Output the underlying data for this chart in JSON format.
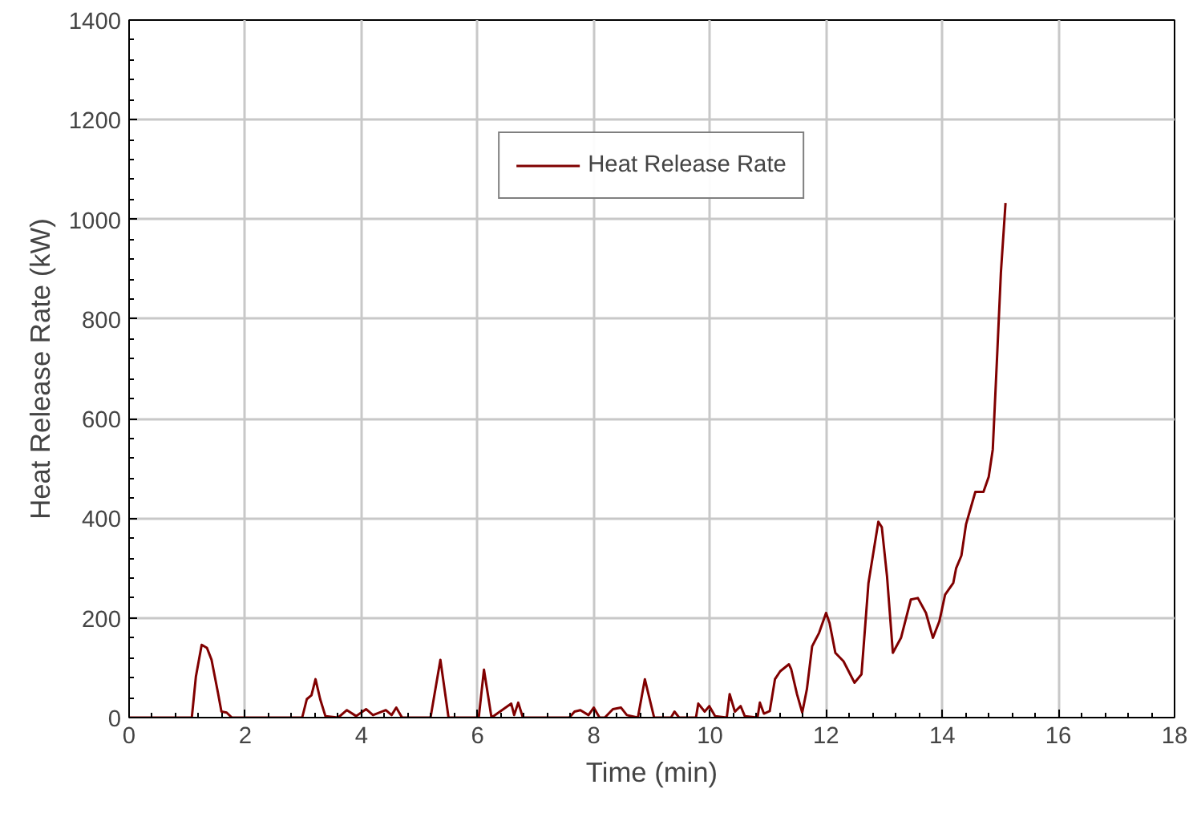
{
  "chart_data": {
    "type": "line",
    "xlabel": "Time (min)",
    "ylabel": "Heat Release Rate (kW)",
    "xlim": [
      0,
      18
    ],
    "ylim": [
      0,
      1400
    ],
    "xticks": [
      0,
      2,
      4,
      6,
      8,
      10,
      12,
      14,
      16,
      18
    ],
    "yticks": [
      0,
      200,
      400,
      600,
      800,
      1000,
      1200,
      1400
    ],
    "grid": true,
    "legend": "top",
    "marker": "none",
    "line_style": "solid",
    "series": [
      {
        "name": "Heat Release Rate",
        "color": "#800000",
        "x": [
          0,
          1.08,
          1.15,
          1.25,
          1.34,
          1.42,
          1.53,
          1.59,
          1.68,
          1.77,
          2.98,
          3.06,
          3.14,
          3.21,
          3.29,
          3.38,
          3.6,
          3.75,
          3.91,
          4.08,
          4.2,
          4.42,
          4.52,
          4.6,
          4.7,
          5.19,
          5.36,
          5.5,
          6.02,
          6.11,
          6.24,
          6.58,
          6.63,
          6.7,
          6.78,
          7.58,
          7.67,
          7.77,
          7.91,
          8.0,
          8.1,
          8.19,
          8.33,
          8.47,
          8.57,
          8.76,
          8.88,
          9.04,
          9.33,
          9.39,
          9.47,
          9.76,
          9.8,
          9.91,
          9.99,
          10.09,
          10.29,
          10.34,
          10.43,
          10.53,
          10.6,
          10.82,
          10.86,
          10.93,
          11.03,
          11.12,
          11.21,
          11.36,
          11.4,
          11.5,
          11.59,
          11.67,
          11.76,
          11.88,
          12.0,
          12.06,
          12.16,
          12.3,
          12.49,
          12.61,
          12.73,
          12.9,
          12.96,
          13.05,
          13.15,
          13.29,
          13.46,
          13.58,
          13.72,
          13.84,
          13.95,
          14.05,
          14.19,
          14.24,
          14.33,
          14.41,
          14.57,
          14.71,
          14.8,
          14.87,
          14.95,
          15.01,
          15.09
        ],
        "values": [
          0,
          0,
          82,
          146,
          140,
          116,
          50,
          12,
          10,
          0,
          0,
          37,
          45,
          77,
          37,
          3,
          0,
          15,
          3,
          17,
          5,
          15,
          5,
          20,
          0,
          0,
          116,
          0,
          0,
          96,
          0,
          28,
          5,
          30,
          0,
          0,
          12,
          15,
          5,
          20,
          0,
          0,
          17,
          20,
          5,
          0,
          77,
          0,
          0,
          12,
          0,
          0,
          28,
          12,
          23,
          3,
          0,
          47,
          12,
          23,
          3,
          0,
          30,
          8,
          13,
          77,
          93,
          107,
          97,
          47,
          10,
          57,
          143,
          170,
          210,
          190,
          130,
          113,
          70,
          87,
          270,
          393,
          382,
          283,
          130,
          160,
          237,
          240,
          210,
          160,
          193,
          247,
          270,
          300,
          325,
          388,
          453,
          453,
          483,
          538,
          738,
          893,
          1033
        ]
      }
    ]
  }
}
